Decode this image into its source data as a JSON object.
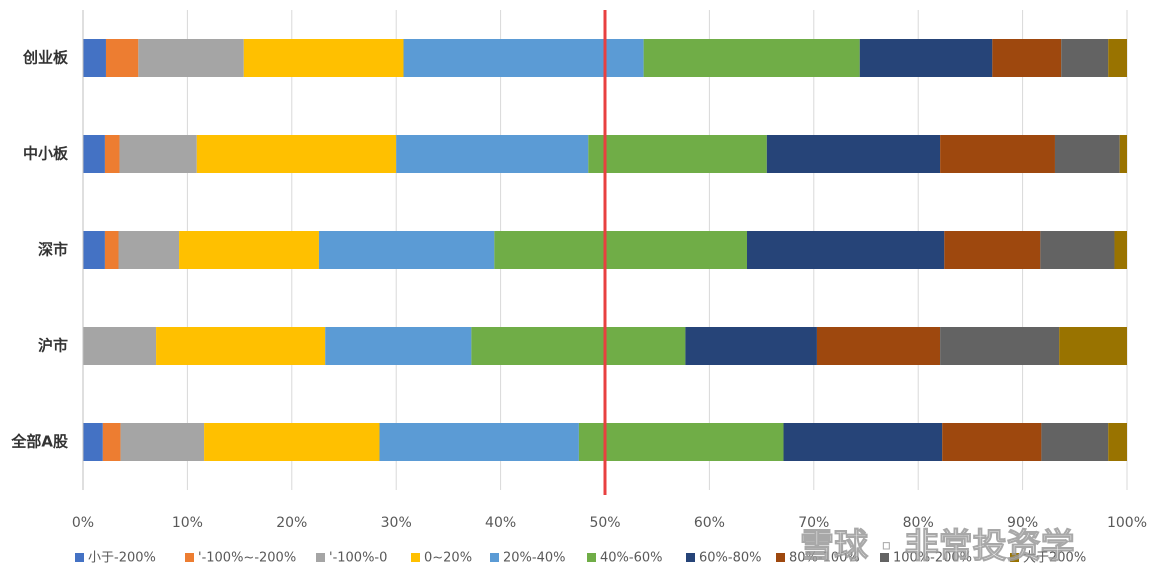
{
  "chart_data": {
    "type": "stacked_bar_horizontal",
    "categories": [
      "创业板",
      "中小板",
      "深市",
      "沪市",
      "全部A股"
    ],
    "series": [
      {
        "name": "小于-200%",
        "color": "#4472c4",
        "values": [
          2.2,
          2.1,
          2.1,
          0,
          1.9
        ]
      },
      {
        "name": "'-100%~-200%",
        "color": "#ed7d31",
        "values": [
          3.1,
          1.4,
          1.3,
          0,
          1.7
        ]
      },
      {
        "name": "'-100%-0",
        "color": "#a5a5a5",
        "values": [
          10.1,
          7.4,
          5.8,
          7.0,
          8.0
        ]
      },
      {
        "name": "0~20%",
        "color": "#ffc000",
        "values": [
          15.3,
          19.1,
          13.4,
          16.2,
          16.8
        ]
      },
      {
        "name": "20%-40%",
        "color": "#5b9bd5",
        "values": [
          23.0,
          18.4,
          16.8,
          14.0,
          19.1
        ]
      },
      {
        "name": "40%-60%",
        "color": "#70ad47",
        "values": [
          20.7,
          17.1,
          24.2,
          20.5,
          19.6
        ]
      },
      {
        "name": "60%-80%",
        "color": "#264478",
        "values": [
          12.7,
          16.6,
          18.9,
          12.6,
          15.2
        ]
      },
      {
        "name": "80%-100%",
        "color": "#9e480e",
        "values": [
          6.6,
          11.0,
          9.2,
          11.8,
          9.5
        ]
      },
      {
        "name": "100%-200%",
        "color": "#636363",
        "values": [
          4.5,
          6.2,
          7.1,
          11.4,
          6.4
        ]
      },
      {
        "name": "大于200%",
        "color": "#997300",
        "values": [
          1.8,
          0.7,
          1.2,
          6.5,
          1.8
        ]
      }
    ],
    "xlim": [
      0,
      100
    ],
    "xticks": [
      {
        "value": 0,
        "label": "0%"
      },
      {
        "value": 10,
        "label": "10%"
      },
      {
        "value": 20,
        "label": "20%"
      },
      {
        "value": 30,
        "label": "30%"
      },
      {
        "value": 40,
        "label": "40%"
      },
      {
        "value": 50,
        "label": "50%"
      },
      {
        "value": 60,
        "label": "60%"
      },
      {
        "value": 70,
        "label": "70%"
      },
      {
        "value": 80,
        "label": "80%"
      },
      {
        "value": 90,
        "label": "90%"
      },
      {
        "value": 100,
        "label": "100%"
      }
    ],
    "grid": true,
    "reference_line": {
      "value": 50,
      "color": "#e84040"
    },
    "legend": "bottom",
    "watermark": "雪球 · 非常投资学"
  }
}
